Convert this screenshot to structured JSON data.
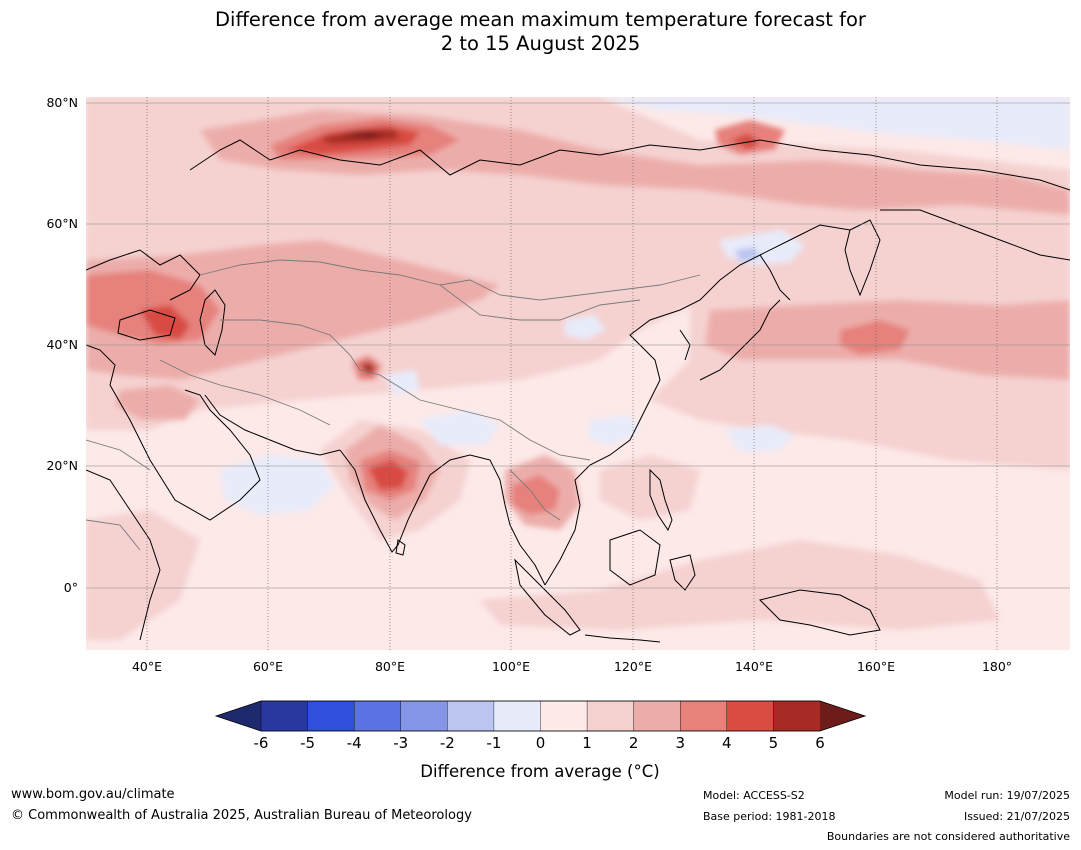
{
  "title": {
    "line1": "Difference from average mean maximum temperature forecast for",
    "line2": "2 to 15 August 2025"
  },
  "map": {
    "region": "Asia",
    "lat_labels": [
      "80°N",
      "60°N",
      "40°N",
      "20°N",
      "0°"
    ],
    "lon_labels": [
      "40°E",
      "60°E",
      "80°E",
      "100°E",
      "120°E",
      "140°E",
      "160°E",
      "180°"
    ],
    "lat_range": [
      -10,
      81
    ],
    "lon_range": [
      30,
      191
    ],
    "anomaly_features": [
      {
        "area": "Northern Siberia / Yamal",
        "level": "5 to 6"
      },
      {
        "area": "Kazakhstan and Caspian region",
        "level": "3 to 5"
      },
      {
        "area": "Central India",
        "level": "4 to 5"
      },
      {
        "area": "Indochina",
        "level": "3 to 4"
      },
      {
        "area": "North Pacific near 40°N",
        "level": "2 to 3"
      },
      {
        "area": "Eastern Siberia",
        "level": "4 to 5"
      },
      {
        "area": "Arctic coast east of 100°E",
        "level": "-1 to 0"
      },
      {
        "area": "Okhotsk Sea",
        "level": "-2 to 0"
      },
      {
        "area": "Arabian Sea",
        "level": "-1 to 0"
      }
    ]
  },
  "colorbar": {
    "ticks": [
      "-6",
      "-5",
      "-4",
      "-3",
      "-2",
      "-1",
      "0",
      "1",
      "2",
      "3",
      "4",
      "5",
      "6"
    ],
    "colors": [
      "#27389f",
      "#3050de",
      "#5c72e2",
      "#8596e8",
      "#bcc5f2",
      "#e8ebfa",
      "#fce9e8",
      "#f5d2d0",
      "#ecadaa",
      "#e6817c",
      "#d84c42",
      "#a72b24"
    ],
    "under_color": "#1e2a6e",
    "over_color": "#6e1c1a",
    "label": "Difference from average (°C)"
  },
  "footer": {
    "url": "www.bom.gov.au/climate",
    "copyright": "© Commonwealth of Australia 2025, Australian Bureau of Meteorology",
    "model": "Model: ACCESS-S2",
    "base_period": "Base period: 1981-2018",
    "model_run": "Model run: 19/07/2025",
    "issued": "Issued: 21/07/2025",
    "boundaries_note": "Boundaries are not considered authoritative"
  }
}
